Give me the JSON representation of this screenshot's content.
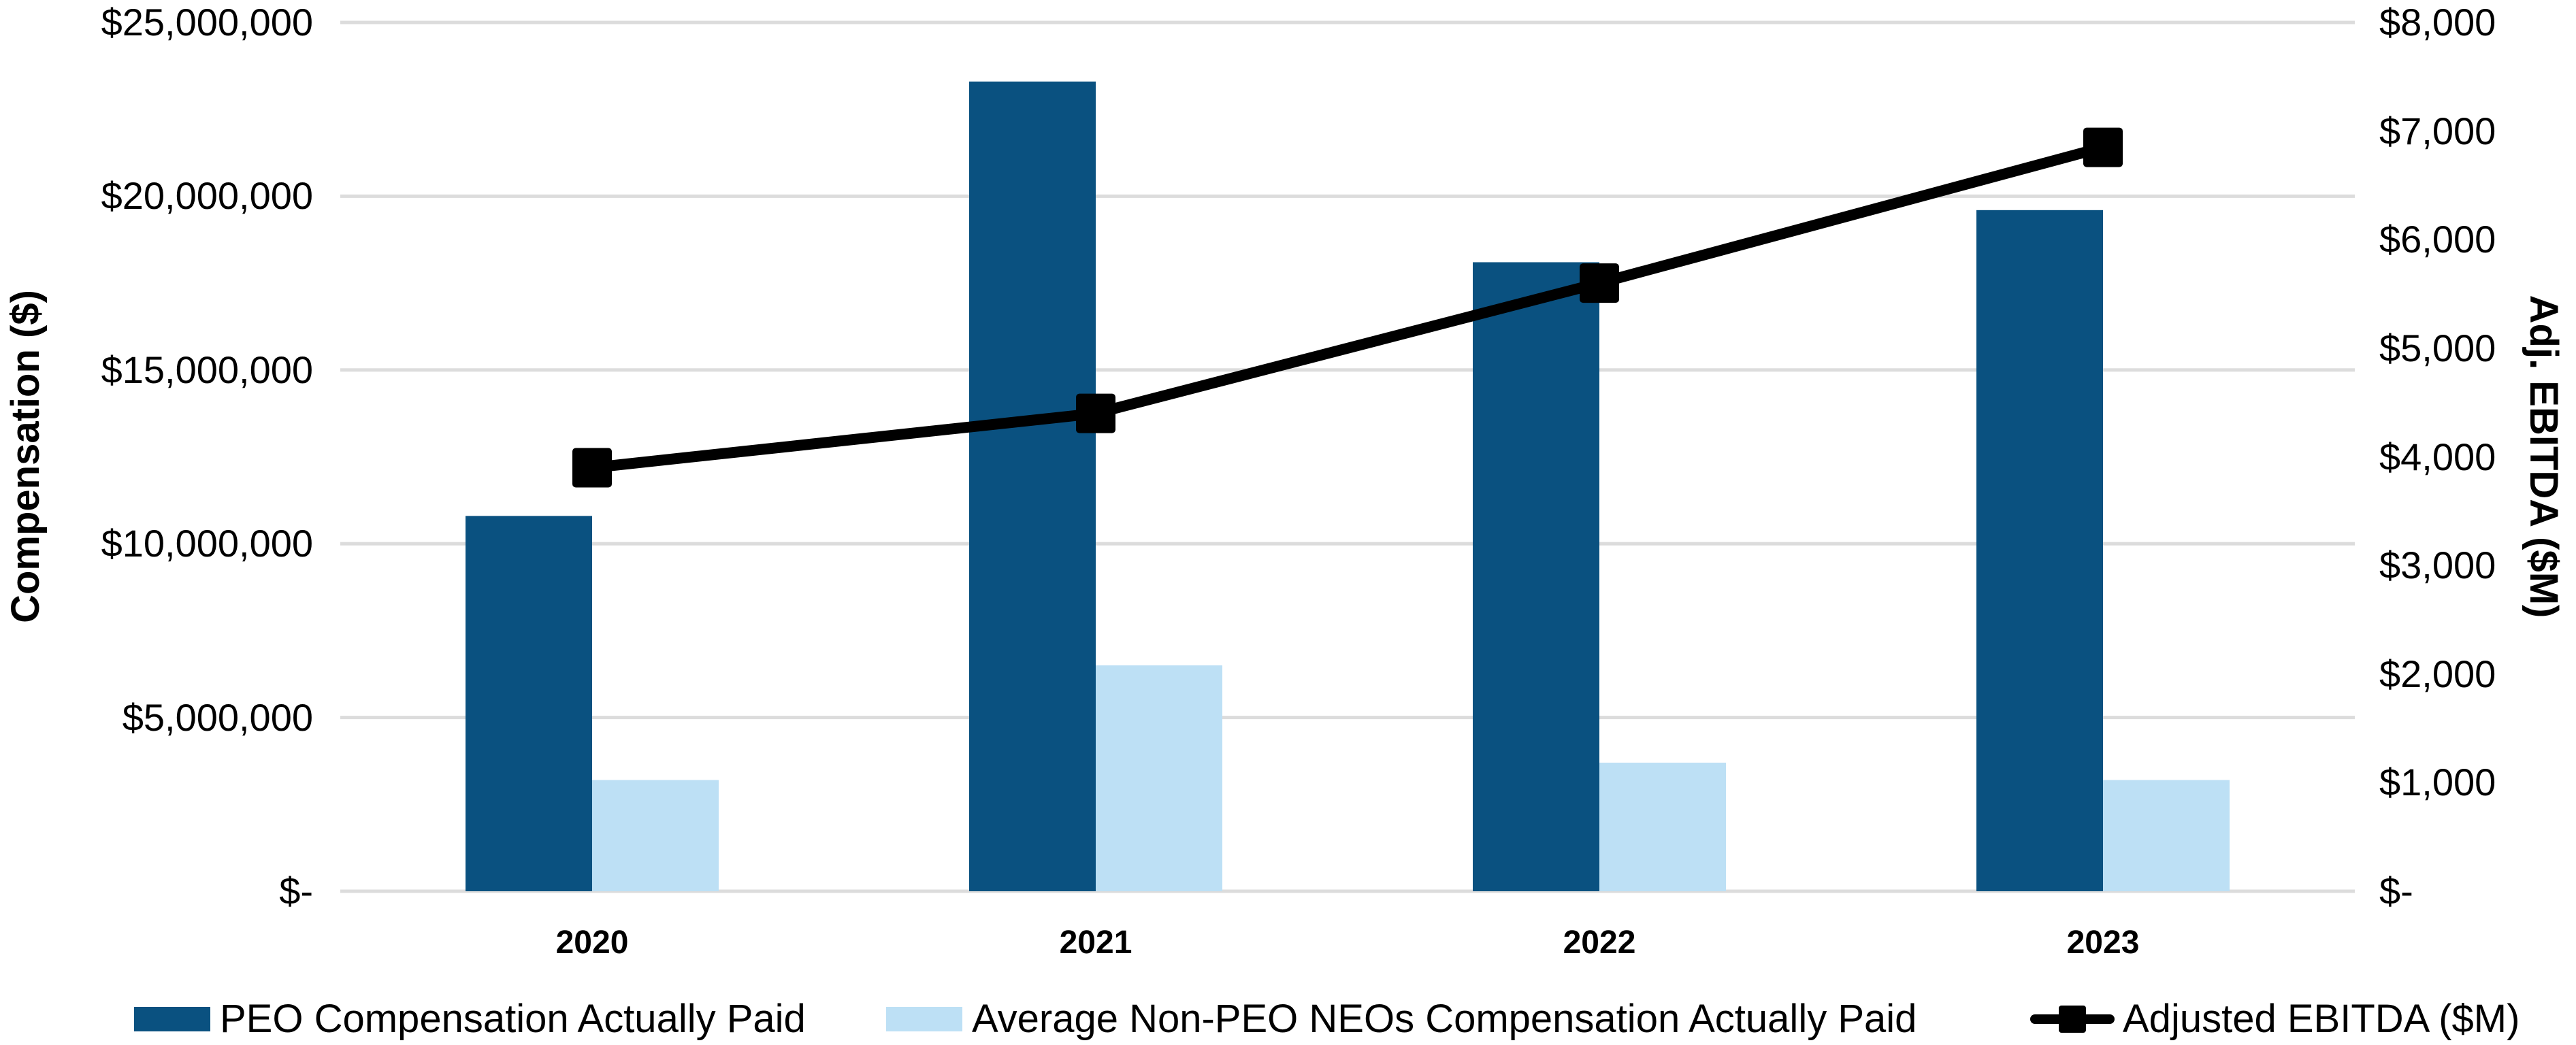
{
  "chart_data": {
    "type": "combo-bar-line",
    "categories": [
      "2020",
      "2021",
      "2022",
      "2023"
    ],
    "series": [
      {
        "name": "PEO Compensation Actually Paid",
        "type": "bar",
        "axis": "left",
        "color": "#0A5180",
        "values": [
          10800000,
          23300000,
          18100000,
          19600000
        ]
      },
      {
        "name": "Average Non-PEO NEOs Compensation Actually Paid",
        "type": "bar",
        "axis": "left",
        "color": "#BDE0F5",
        "values": [
          3200000,
          6500000,
          3700000,
          3200000
        ]
      },
      {
        "name": "Adjusted EBITDA ($M)",
        "type": "line",
        "axis": "right",
        "color": "#000000",
        "marker": "square",
        "values": [
          3900,
          4400,
          5600,
          6850
        ]
      }
    ],
    "left_axis": {
      "title": "Compensation ($)",
      "min": 0,
      "max": 25000000,
      "tick_interval": 5000000,
      "tick_labels": [
        "$-",
        "$5,000,000",
        "$10,000,000",
        "$15,000,000",
        "$20,000,000",
        "$25,000,000"
      ]
    },
    "right_axis": {
      "title": "Adj. EBITDA ($M)",
      "min": 0,
      "max": 8000,
      "tick_interval": 1000,
      "tick_labels": [
        "$-",
        "$1,000",
        "$2,000",
        "$3,000",
        "$4,000",
        "$5,000",
        "$6,000",
        "$7,000",
        "$8,000"
      ]
    },
    "gridlines": {
      "on": true,
      "color": "#DCDCDC",
      "follow_axis": "left"
    },
    "legend_position": "bottom"
  }
}
